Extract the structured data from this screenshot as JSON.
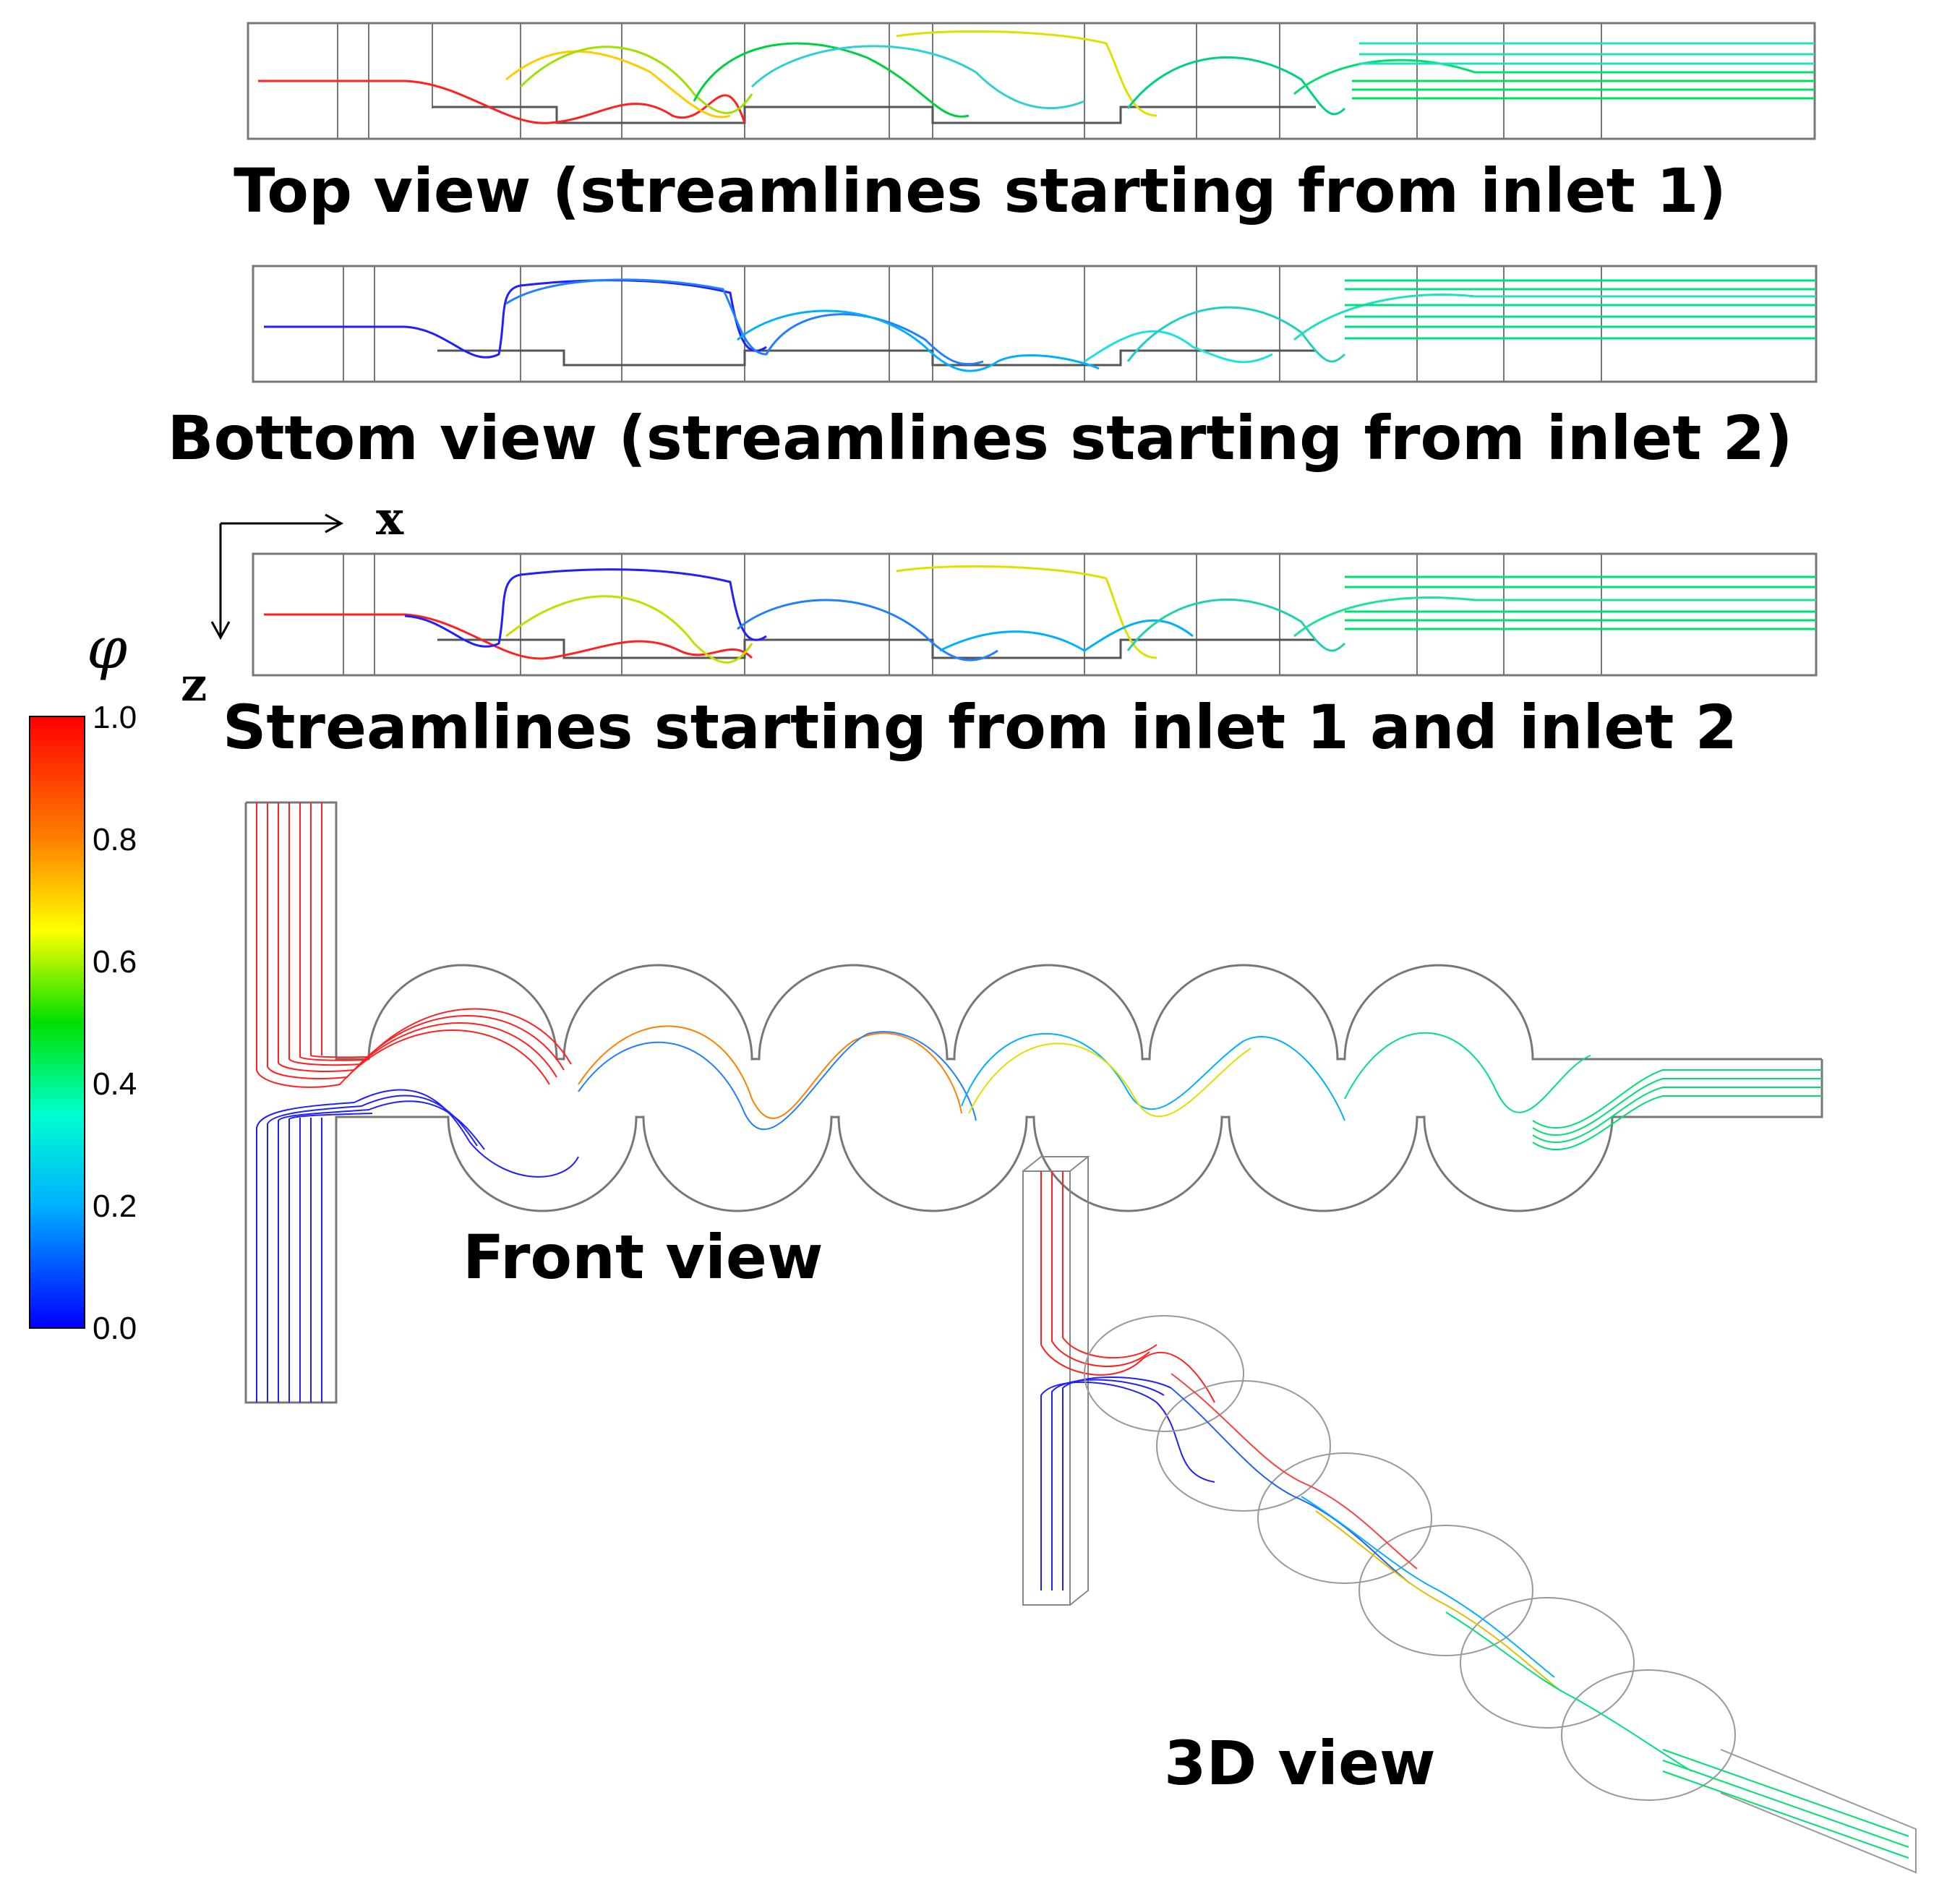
{
  "captions": {
    "top": "Top view (streamlines starting from inlet 1)",
    "bottom": "Bottom view (streamlines starting from inlet 2)",
    "both": "Streamlines starting from inlet 1 and inlet 2",
    "front": "Front view",
    "three_d": "3D view"
  },
  "axes": {
    "x_label": "x",
    "z_label": "z"
  },
  "colorbar": {
    "symbol": "φ",
    "ticks": [
      "1.0",
      "0.8",
      "0.6",
      "0.4",
      "0.2",
      "0.0"
    ],
    "colors": [
      "#ff0000",
      "#ff8000",
      "#ffff00",
      "#00e000",
      "#00ffd0",
      "#00b0ff",
      "#0000ff"
    ]
  },
  "stream_colors": {
    "inlet1": "#ff2020",
    "inlet2": "#2020ff",
    "mixed_mid": "#00e080",
    "mixed_out": "#20d0a0"
  }
}
